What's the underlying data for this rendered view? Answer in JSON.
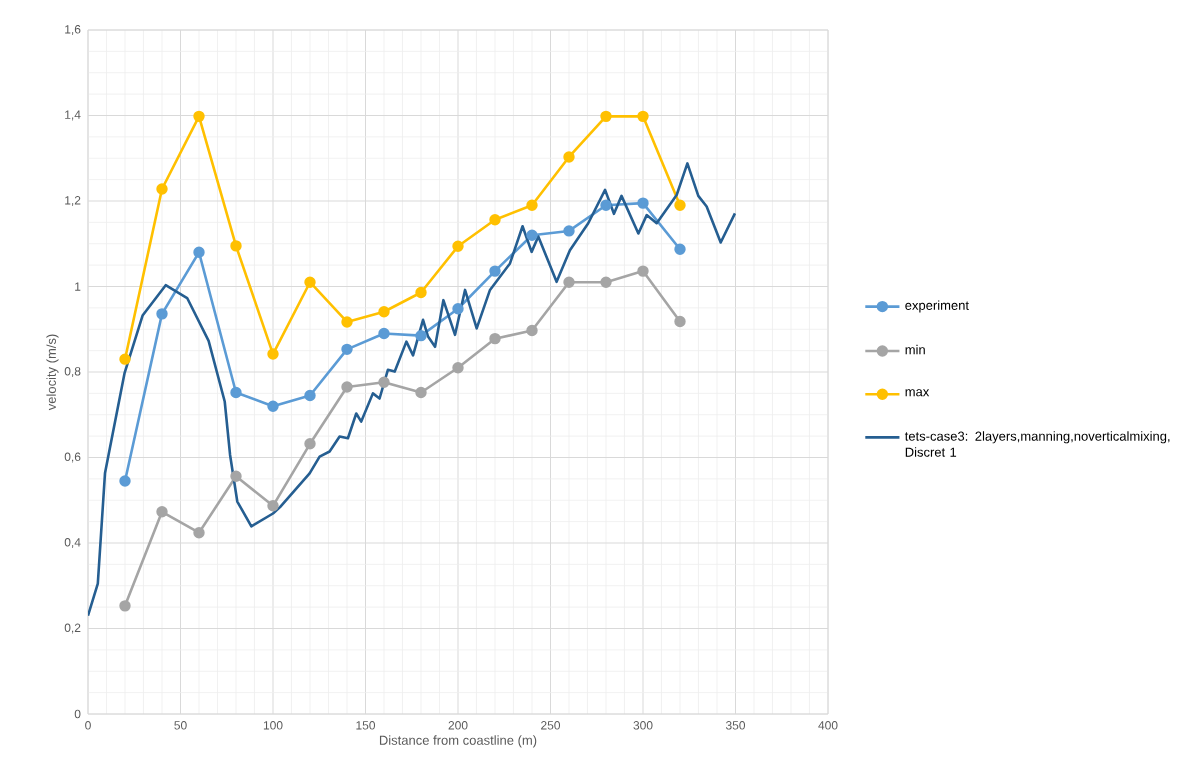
{
  "chart_data": {
    "type": "line",
    "xlabel": "Distance from coastline (m)",
    "ylabel": "velocity (m/s)",
    "x": [
      20,
      40,
      60,
      80,
      100,
      120,
      140,
      160,
      180,
      200,
      220,
      240,
      260,
      280,
      300,
      320
    ],
    "series": [
      {
        "name": "experiment",
        "color": "#5b9bd5",
        "marker": "circle",
        "values": [
          0.545,
          0.936,
          1.08,
          0.752,
          0.72,
          0.745,
          0.853,
          0.89,
          0.885,
          0.948,
          1.036,
          1.12,
          1.13,
          1.19,
          1.195,
          1.087
        ]
      },
      {
        "name": "min",
        "color": "#a5a5a5",
        "marker": "circle",
        "values": [
          0.253,
          0.473,
          0.424,
          0.556,
          0.487,
          0.632,
          0.765,
          0.776,
          0.752,
          0.81,
          0.878,
          0.897,
          1.01,
          1.01,
          1.036,
          0.918
        ]
      },
      {
        "name": "max",
        "color": "#ffc000",
        "marker": "circle",
        "values": [
          0.83,
          1.228,
          1.398,
          1.095,
          0.842,
          1.01,
          0.917,
          0.941,
          0.986,
          1.094,
          1.156,
          1.19,
          1.303,
          1.398,
          1.398,
          1.19
        ]
      },
      {
        "name": "tets-case3: 2layers,manning,noverticalmixing, Discret 1",
        "color": "#255e91",
        "marker": "none",
        "x": [
          0,
          5.3,
          9.2,
          11.1,
          19.8,
          29.5,
          42,
          53.6,
          65.2,
          73.9,
          76.8,
          80.7,
          88.3,
          100,
          103.8,
          119.8,
          125.2,
          130.6,
          136,
          140.5,
          145,
          147.7,
          154,
          157.6,
          162.1,
          165.8,
          172.1,
          175.7,
          181.1,
          183.8,
          187.6,
          192.1,
          198.4,
          203.8,
          210.1,
          217.3,
          228.1,
          234.9,
          239.8,
          243.4,
          253.3,
          260.5,
          270.4,
          279.5,
          284.3,
          288.4,
          297.5,
          302,
          307.4,
          318.2,
          324,
          329.9,
          334.4,
          342,
          349.7
        ],
        "values": [
          0.23,
          0.305,
          0.564,
          0.606,
          0.798,
          0.932,
          1.003,
          0.973,
          0.873,
          0.731,
          0.606,
          0.497,
          0.439,
          0.469,
          0.484,
          0.563,
          0.602,
          0.614,
          0.649,
          0.645,
          0.703,
          0.684,
          0.75,
          0.738,
          0.805,
          0.801,
          0.871,
          0.839,
          0.922,
          0.883,
          0.859,
          0.968,
          0.887,
          0.992,
          0.902,
          0.992,
          1.054,
          1.141,
          1.081,
          1.117,
          1.011,
          1.085,
          1.148,
          1.226,
          1.17,
          1.212,
          1.124,
          1.167,
          1.148,
          1.214,
          1.288,
          1.212,
          1.187,
          1.103,
          1.171
        ]
      }
    ],
    "xlim": [
      0,
      400
    ],
    "xticks": [
      0,
      50,
      100,
      150,
      200,
      250,
      300,
      350,
      400
    ],
    "ylim": [
      0,
      1.6
    ],
    "yticks": [
      0,
      {
        "value": 0.2,
        "label": "0,2"
      },
      {
        "value": 0.4,
        "label": "0,4"
      },
      {
        "value": 0.6,
        "label": "0,6"
      },
      {
        "value": 0.8,
        "label": "0,8"
      },
      1,
      {
        "value": 1.2,
        "label": "1,2"
      },
      {
        "value": 1.4,
        "label": "1,4"
      },
      {
        "value": 1.6,
        "label": "1,6"
      }
    ],
    "grid": true,
    "legend": "right",
    "line_style": "solid"
  }
}
